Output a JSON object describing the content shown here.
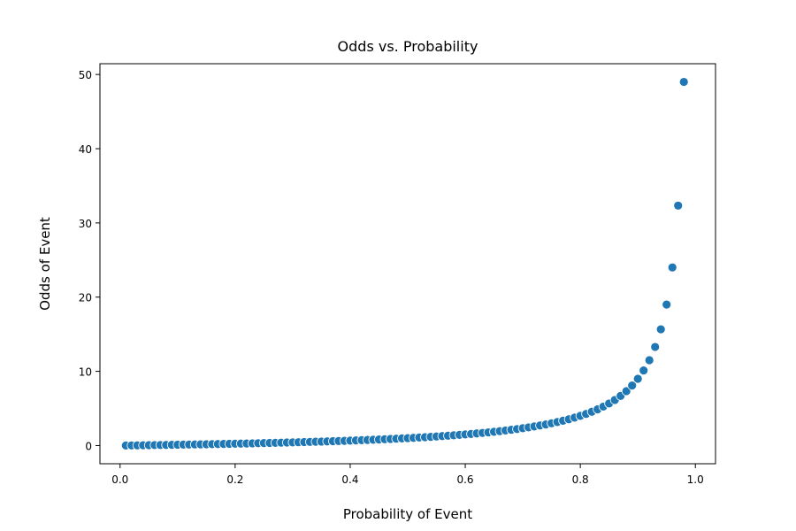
{
  "chart_data": {
    "type": "scatter",
    "title": "Odds vs. Probability",
    "xlabel": "Probability of Event",
    "ylabel": "Odds of Event",
    "xlim": [
      -0.035,
      1.035
    ],
    "ylim": [
      -2.45,
      51.45
    ],
    "xticks": [
      0.0,
      0.2,
      0.4,
      0.6,
      0.8,
      1.0
    ],
    "xtick_labels": [
      "0.0",
      "0.2",
      "0.4",
      "0.6",
      "0.8",
      "1.0"
    ],
    "yticks": [
      0,
      10,
      20,
      30,
      40,
      50
    ],
    "ytick_labels": [
      "0",
      "10",
      "20",
      "30",
      "40",
      "50"
    ],
    "grid": false,
    "marker_color": "#1f77b4",
    "x": [
      0.01,
      0.02,
      0.03,
      0.04,
      0.05,
      0.06,
      0.07,
      0.08,
      0.09,
      0.1,
      0.11,
      0.12,
      0.13,
      0.14,
      0.15,
      0.16,
      0.17,
      0.18,
      0.19,
      0.2,
      0.21,
      0.22,
      0.23,
      0.24,
      0.25,
      0.26,
      0.27,
      0.28,
      0.29,
      0.3,
      0.31,
      0.32,
      0.33,
      0.34,
      0.35,
      0.36,
      0.37,
      0.38,
      0.39,
      0.4,
      0.41,
      0.42,
      0.43,
      0.44,
      0.45,
      0.46,
      0.47,
      0.48,
      0.49,
      0.5,
      0.51,
      0.52,
      0.53,
      0.54,
      0.55,
      0.56,
      0.57,
      0.58,
      0.59,
      0.6,
      0.61,
      0.62,
      0.63,
      0.64,
      0.65,
      0.66,
      0.67,
      0.68,
      0.69,
      0.7,
      0.71,
      0.72,
      0.73,
      0.74,
      0.75,
      0.76,
      0.77,
      0.78,
      0.79,
      0.8,
      0.81,
      0.82,
      0.83,
      0.84,
      0.85,
      0.86,
      0.87,
      0.88,
      0.89,
      0.9,
      0.91,
      0.92,
      0.93,
      0.94,
      0.95,
      0.96,
      0.97,
      0.98
    ],
    "y": [
      0.01,
      0.02,
      0.031,
      0.042,
      0.053,
      0.064,
      0.075,
      0.087,
      0.099,
      0.111,
      0.124,
      0.136,
      0.149,
      0.163,
      0.176,
      0.19,
      0.205,
      0.22,
      0.235,
      0.25,
      0.266,
      0.282,
      0.299,
      0.316,
      0.333,
      0.351,
      0.37,
      0.389,
      0.408,
      0.429,
      0.449,
      0.471,
      0.493,
      0.515,
      0.538,
      0.563,
      0.587,
      0.613,
      0.639,
      0.667,
      0.695,
      0.724,
      0.754,
      0.786,
      0.818,
      0.852,
      0.887,
      0.923,
      0.961,
      1.0,
      1.041,
      1.083,
      1.128,
      1.174,
      1.222,
      1.273,
      1.326,
      1.381,
      1.439,
      1.5,
      1.564,
      1.632,
      1.703,
      1.778,
      1.857,
      1.941,
      2.03,
      2.125,
      2.226,
      2.333,
      2.448,
      2.571,
      2.704,
      2.846,
      3.0,
      3.167,
      3.348,
      3.545,
      3.762,
      4.0,
      4.263,
      4.556,
      4.882,
      5.25,
      5.667,
      6.143,
      6.692,
      7.333,
      8.091,
      9.0,
      10.111,
      11.5,
      13.286,
      15.667,
      19.0,
      24.0,
      32.333,
      49.0
    ]
  }
}
